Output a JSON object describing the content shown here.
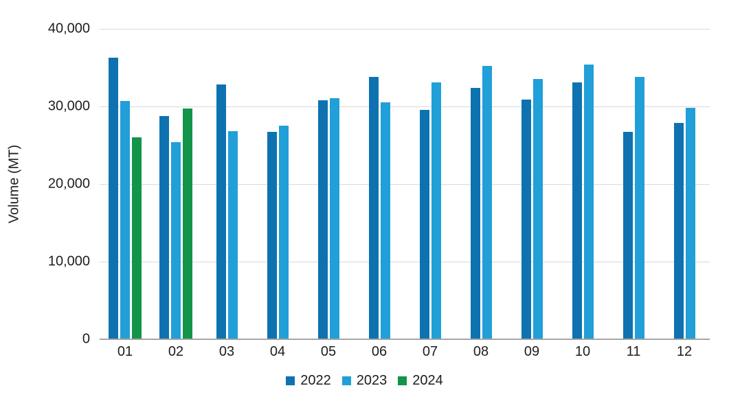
{
  "chart_data": {
    "type": "bar",
    "title": "",
    "xlabel": "",
    "ylabel": "Volume (MT)",
    "categories": [
      "01",
      "02",
      "03",
      "04",
      "05",
      "06",
      "07",
      "08",
      "09",
      "10",
      "11",
      "12"
    ],
    "series": [
      {
        "name": "2022",
        "color": "#0e72b1",
        "values": [
          36300,
          28800,
          32800,
          26700,
          30800,
          33800,
          29600,
          32400,
          30900,
          33100,
          26700,
          27900
        ]
      },
      {
        "name": "2023",
        "color": "#219fd8",
        "values": [
          30700,
          25400,
          26800,
          27500,
          31100,
          30500,
          33100,
          35200,
          33500,
          35400,
          33800,
          29800
        ]
      },
      {
        "name": "2024",
        "color": "#12944a",
        "values": [
          26000,
          29700,
          null,
          null,
          null,
          null,
          null,
          null,
          null,
          null,
          null,
          null
        ]
      }
    ],
    "ylim": [
      0,
      40000
    ],
    "yticks": [
      {
        "value": 40000,
        "label": "40,000"
      },
      {
        "value": 30000,
        "label": "30,000"
      },
      {
        "value": 20000,
        "label": "20,000"
      },
      {
        "value": 10000,
        "label": "10,000"
      },
      {
        "value": 0,
        "label": "0"
      }
    ],
    "grid": true,
    "legend_position": "bottom",
    "colors": {
      "gridline": "#d9d9d9",
      "axis_line": "#a6a6a6",
      "text": "#1d1d1d",
      "background": "#ffffff"
    }
  }
}
